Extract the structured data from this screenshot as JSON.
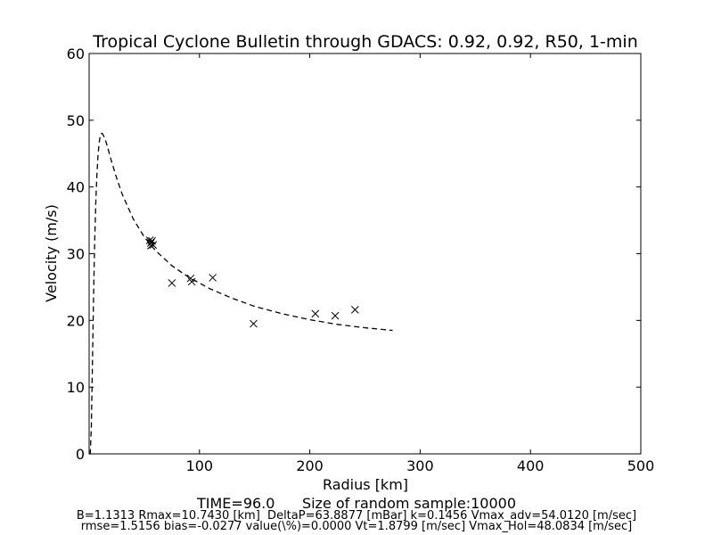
{
  "chart_data": {
    "type": "scatter",
    "title": "Tropical Cyclone Bulletin through GDACS: 0.92, 0.92, R50, 1-min",
    "xlabel": "Radius [km]",
    "ylabel": "Velocity (m/s)",
    "xlim": [
      0,
      500
    ],
    "ylim": [
      0,
      60
    ],
    "xticks": [
      100,
      200,
      300,
      400,
      500
    ],
    "yticks": [
      0,
      10,
      20,
      30,
      40,
      50,
      60
    ],
    "grid": false,
    "series": [
      {
        "style": "x-marker",
        "x": [
          55,
          56,
          57,
          56,
          58,
          75,
          92,
          93,
          112,
          149,
          205,
          223,
          241
        ],
        "y": [
          32.0,
          31.6,
          31.9,
          31.2,
          31.3,
          25.6,
          26.3,
          25.8,
          26.4,
          19.5,
          21.0,
          20.7,
          21.6
        ]
      },
      {
        "style": "dashed-line",
        "x": [
          0.5,
          1,
          2,
          3,
          4,
          5,
          6,
          7,
          8,
          9,
          10,
          11,
          12,
          14,
          16,
          20,
          25,
          30,
          40,
          50,
          60,
          75,
          90,
          110,
          130,
          150,
          175,
          200,
          225,
          250,
          275
        ],
        "y": [
          0,
          0,
          4.0,
          13.5,
          23.5,
          31.5,
          37.5,
          41.7,
          44.6,
          46.5,
          47.6,
          48.0,
          48.0,
          47.4,
          46.4,
          44.0,
          41.3,
          38.9,
          35.2,
          32.5,
          30.5,
          28.2,
          26.5,
          24.7,
          23.3,
          22.1,
          21.0,
          20.1,
          19.4,
          18.9,
          18.5
        ]
      }
    ],
    "annotations": {
      "line1": "TIME=96.0      Size of random sample:10000",
      "line2": "B=1.1313 Rmax=10.7430 [km]  DeltaP=63.8877 [mBar] k=0.1456 Vmax_adv=54.0120 [m/sec]",
      "line3": "rmse=1.5156 bias=-0.0277 value(\\%)=0.0000 Vt=1.8799 [m/sec] Vmax_Hol=48.0834 [m/sec]"
    }
  }
}
